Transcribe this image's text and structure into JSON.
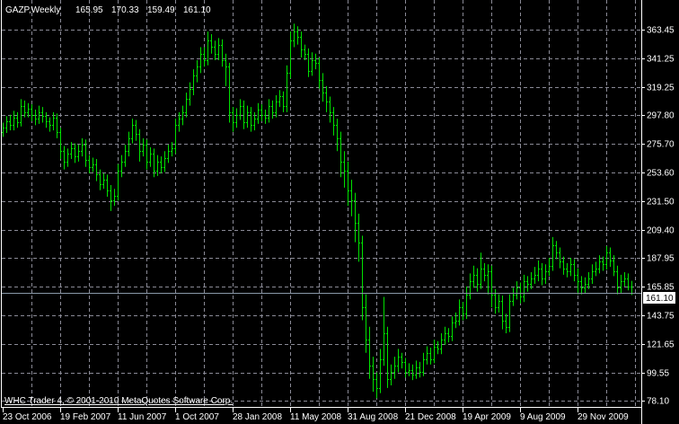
{
  "header": {
    "symbol_period": "GAZP,Weekly",
    "open": "165.95",
    "high": "170.33",
    "low": "159.49",
    "close": "161.10"
  },
  "copyright": "WHC Trader 4, © 2001-2010 MetaQuotes Software Corp.",
  "current_price_label": "161.10",
  "colors": {
    "background": "#000000",
    "bars": "#00e000",
    "grid": "#8a8a96",
    "axis": "#ffffff",
    "price_line": "#8898a8"
  },
  "chart_data": {
    "type": "ohlc",
    "title": "GAZP,Weekly",
    "grid": true,
    "y_axis_position": "right",
    "ylim": [
      74,
      374
    ],
    "y_ticks": [
      "363.45",
      "341.25",
      "319.25",
      "297.80",
      "275.70",
      "253.60",
      "231.50",
      "209.40",
      "187.95",
      "165.85",
      "143.75",
      "121.65",
      "99.55",
      "78.10"
    ],
    "x_ticks": [
      "23 Oct 2006",
      "19 Feb 2007",
      "11 Jun 2007",
      "1 Oct 2007",
      "28 Jan 2008",
      "11 May 2008",
      "31 Aug 2008",
      "21 Dec 2008",
      "19 Apr 2009",
      "9 Aug 2009",
      "29 Nov 2009"
    ],
    "current_price": 161.1,
    "bars": [
      [
        285,
        292,
        281,
        288
      ],
      [
        288,
        297,
        284,
        293
      ],
      [
        293,
        298,
        286,
        290
      ],
      [
        290,
        301,
        286,
        296
      ],
      [
        296,
        300,
        288,
        292
      ],
      [
        292,
        310,
        289,
        305
      ],
      [
        305,
        309,
        296,
        300
      ],
      [
        300,
        307,
        296,
        303
      ],
      [
        303,
        306,
        293,
        298
      ],
      [
        298,
        302,
        290,
        295
      ],
      [
        295,
        305,
        291,
        300
      ],
      [
        300,
        304,
        292,
        297
      ],
      [
        297,
        300,
        288,
        293
      ],
      [
        293,
        296,
        285,
        290
      ],
      [
        290,
        300,
        286,
        296
      ],
      [
        296,
        299,
        280,
        285
      ],
      [
        285,
        288,
        264,
        270
      ],
      [
        270,
        274,
        256,
        262
      ],
      [
        262,
        272,
        258,
        268
      ],
      [
        268,
        277,
        264,
        272
      ],
      [
        272,
        276,
        261,
        266
      ],
      [
        266,
        275,
        262,
        270
      ],
      [
        270,
        280,
        266,
        275
      ],
      [
        275,
        279,
        258,
        263
      ],
      [
        263,
        267,
        253,
        258
      ],
      [
        258,
        265,
        254,
        260
      ],
      [
        260,
        264,
        247,
        252
      ],
      [
        252,
        256,
        240,
        245
      ],
      [
        245,
        253,
        241,
        248
      ],
      [
        248,
        252,
        235,
        240
      ],
      [
        240,
        244,
        224,
        232
      ],
      [
        232,
        241,
        228,
        236
      ],
      [
        236,
        260,
        232,
        255
      ],
      [
        255,
        267,
        250,
        262
      ],
      [
        262,
        275,
        258,
        270
      ],
      [
        270,
        285,
        266,
        280
      ],
      [
        280,
        295,
        276,
        290
      ],
      [
        290,
        294,
        278,
        283
      ],
      [
        283,
        287,
        262,
        270
      ],
      [
        270,
        280,
        266,
        275
      ],
      [
        275,
        279,
        256,
        262
      ],
      [
        262,
        273,
        258,
        268
      ],
      [
        268,
        272,
        250,
        255
      ],
      [
        255,
        267,
        251,
        262
      ],
      [
        262,
        266,
        253,
        258
      ],
      [
        258,
        270,
        254,
        265
      ],
      [
        265,
        275,
        261,
        270
      ],
      [
        270,
        277,
        266,
        272
      ],
      [
        272,
        295,
        268,
        290
      ],
      [
        290,
        300,
        285,
        295
      ],
      [
        295,
        305,
        290,
        300
      ],
      [
        300,
        315,
        296,
        310
      ],
      [
        310,
        323,
        305,
        318
      ],
      [
        318,
        333,
        313,
        328
      ],
      [
        328,
        340,
        323,
        335
      ],
      [
        335,
        350,
        330,
        345
      ],
      [
        345,
        350,
        335,
        340
      ],
      [
        340,
        362,
        336,
        355
      ],
      [
        355,
        360,
        345,
        350
      ],
      [
        350,
        355,
        340,
        345
      ],
      [
        345,
        357,
        340,
        352
      ],
      [
        352,
        356,
        335,
        340
      ],
      [
        340,
        345,
        320,
        335
      ],
      [
        335,
        338,
        292,
        300
      ],
      [
        300,
        304,
        285,
        292
      ],
      [
        292,
        303,
        288,
        298
      ],
      [
        298,
        310,
        294,
        305
      ],
      [
        305,
        309,
        287,
        292
      ],
      [
        292,
        305,
        288,
        300
      ],
      [
        300,
        304,
        285,
        290
      ],
      [
        290,
        300,
        286,
        295
      ],
      [
        295,
        307,
        291,
        302
      ],
      [
        302,
        306,
        293,
        298
      ],
      [
        298,
        302,
        291,
        296
      ],
      [
        296,
        310,
        292,
        305
      ],
      [
        305,
        309,
        295,
        300
      ],
      [
        300,
        313,
        296,
        308
      ],
      [
        308,
        317,
        304,
        312
      ],
      [
        312,
        316,
        300,
        305
      ],
      [
        305,
        336,
        300,
        330
      ],
      [
        330,
        362,
        326,
        355
      ],
      [
        355,
        368,
        350,
        362
      ],
      [
        362,
        366,
        352,
        358
      ],
      [
        358,
        362,
        342,
        348
      ],
      [
        348,
        352,
        340,
        345
      ],
      [
        345,
        349,
        327,
        332
      ],
      [
        332,
        346,
        328,
        340
      ],
      [
        340,
        345,
        333,
        338
      ],
      [
        338,
        342,
        318,
        325
      ],
      [
        325,
        330,
        308,
        315
      ],
      [
        315,
        320,
        300,
        308
      ],
      [
        308,
        312,
        292,
        300
      ],
      [
        300,
        304,
        282,
        290
      ],
      [
        290,
        295,
        270,
        280
      ],
      [
        280,
        285,
        250,
        262
      ],
      [
        262,
        270,
        242,
        255
      ],
      [
        255,
        262,
        228,
        240
      ],
      [
        240,
        248,
        220,
        232
      ],
      [
        232,
        238,
        200,
        215
      ],
      [
        215,
        222,
        185,
        200
      ],
      [
        200,
        205,
        140,
        150
      ],
      [
        150,
        160,
        115,
        125
      ],
      [
        125,
        135,
        95,
        105
      ],
      [
        105,
        112,
        85,
        95
      ],
      [
        95,
        100,
        80,
        88
      ],
      [
        88,
        118,
        84,
        110
      ],
      [
        110,
        158,
        105,
        130
      ],
      [
        130,
        135,
        88,
        95
      ],
      [
        95,
        106,
        90,
        100
      ],
      [
        100,
        112,
        95,
        105
      ],
      [
        105,
        118,
        100,
        112
      ],
      [
        112,
        115,
        103,
        108
      ],
      [
        108,
        111,
        96,
        100
      ],
      [
        100,
        107,
        97,
        102
      ],
      [
        102,
        106,
        94,
        98
      ],
      [
        98,
        109,
        95,
        104
      ],
      [
        104,
        108,
        96,
        100
      ],
      [
        100,
        115,
        97,
        110
      ],
      [
        110,
        120,
        106,
        115
      ],
      [
        115,
        119,
        106,
        110
      ],
      [
        110,
        125,
        107,
        120
      ],
      [
        120,
        124,
        114,
        118
      ],
      [
        118,
        130,
        114,
        125
      ],
      [
        125,
        135,
        121,
        130
      ],
      [
        130,
        134,
        123,
        128
      ],
      [
        128,
        143,
        124,
        138
      ],
      [
        138,
        146,
        134,
        140
      ],
      [
        140,
        156,
        136,
        150
      ],
      [
        150,
        154,
        140,
        145
      ],
      [
        145,
        166,
        141,
        160
      ],
      [
        160,
        176,
        156,
        170
      ],
      [
        170,
        182,
        165,
        175
      ],
      [
        175,
        180,
        162,
        168
      ],
      [
        168,
        192,
        164,
        180
      ],
      [
        180,
        184,
        170,
        175
      ],
      [
        175,
        183,
        160,
        178
      ],
      [
        178,
        182,
        150,
        160
      ],
      [
        160,
        164,
        145,
        150
      ],
      [
        150,
        160,
        146,
        155
      ],
      [
        155,
        159,
        133,
        140
      ],
      [
        140,
        145,
        130,
        135
      ],
      [
        135,
        160,
        131,
        155
      ],
      [
        155,
        165,
        151,
        160
      ],
      [
        160,
        170,
        156,
        165
      ],
      [
        165,
        169,
        153,
        158
      ],
      [
        158,
        175,
        154,
        170
      ],
      [
        170,
        174,
        162,
        168
      ],
      [
        168,
        177,
        164,
        172
      ],
      [
        172,
        181,
        168,
        175
      ],
      [
        175,
        186,
        170,
        180
      ],
      [
        180,
        184,
        167,
        172
      ],
      [
        172,
        183,
        168,
        178
      ],
      [
        178,
        188,
        174,
        182
      ],
      [
        182,
        204,
        178,
        198
      ],
      [
        198,
        201,
        187,
        192
      ],
      [
        192,
        196,
        180,
        185
      ],
      [
        185,
        189,
        175,
        180
      ],
      [
        180,
        184,
        173,
        178
      ],
      [
        178,
        188,
        174,
        183
      ],
      [
        183,
        187,
        170,
        175
      ],
      [
        175,
        180,
        160,
        170
      ],
      [
        170,
        174,
        160,
        165
      ],
      [
        165,
        173,
        161,
        168
      ],
      [
        168,
        177,
        164,
        172
      ],
      [
        172,
        183,
        168,
        178
      ],
      [
        178,
        185,
        174,
        180
      ],
      [
        180,
        190,
        176,
        185
      ],
      [
        185,
        189,
        178,
        183
      ],
      [
        183,
        197,
        179,
        192
      ],
      [
        192,
        196,
        181,
        186
      ],
      [
        186,
        190,
        174,
        178
      ],
      [
        178,
        182,
        160,
        165
      ],
      [
        165,
        175,
        161,
        170
      ],
      [
        170,
        177,
        166,
        172
      ],
      [
        172,
        176,
        163,
        165.95
      ],
      [
        165.95,
        170.33,
        159.49,
        161.1
      ]
    ]
  }
}
